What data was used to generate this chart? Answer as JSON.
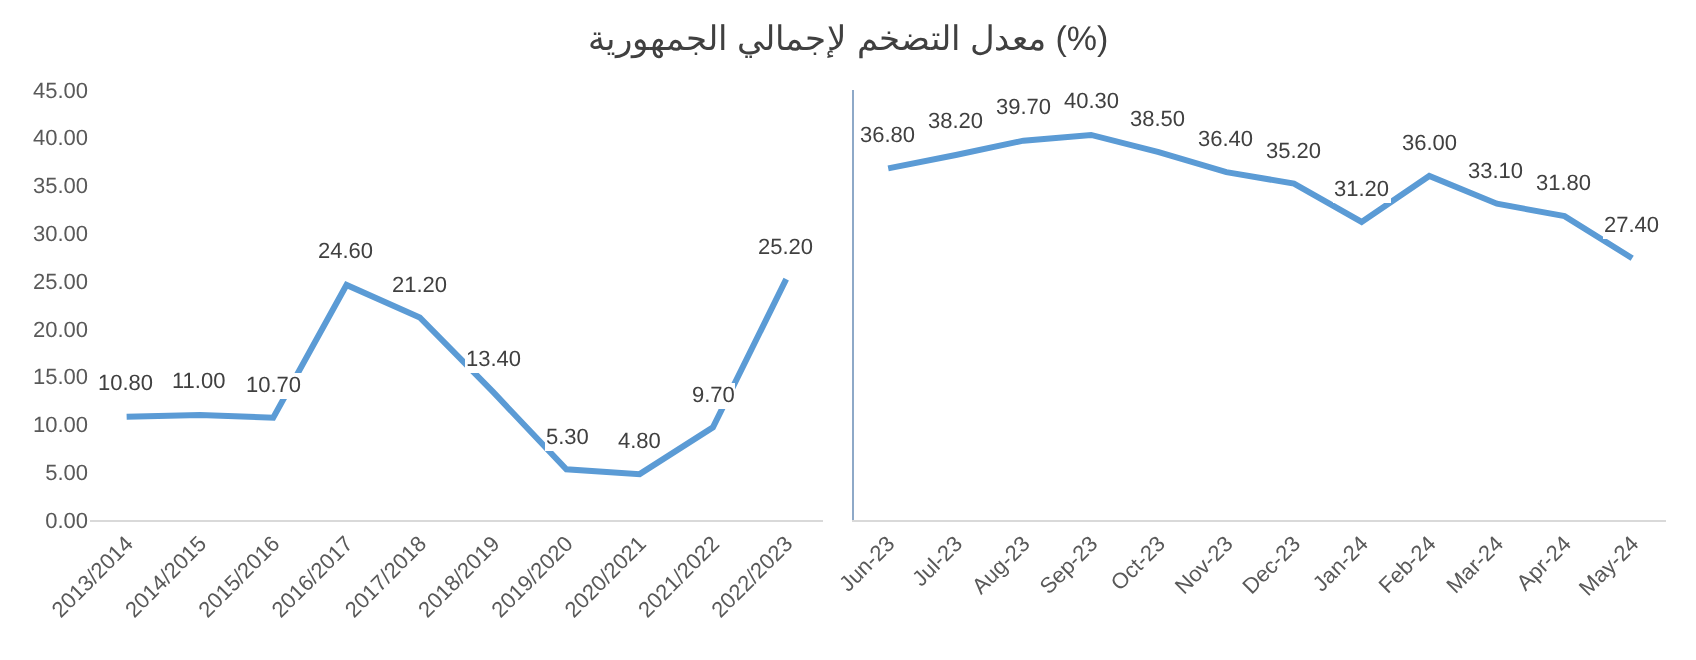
{
  "chart_data": [
    {
      "type": "line",
      "title": "معدل التضخم لإجمالي الجمهورية (%)",
      "categories": [
        "2013/2014",
        "2014/2015",
        "2015/2016",
        "2016/2017",
        "2017/2018",
        "2018/2019",
        "2019/2020",
        "2020/2021",
        "2021/2022",
        "2022/2023"
      ],
      "series": [
        {
          "color": "#5b9bd5",
          "values": [
            10.8,
            11.0,
            10.7,
            24.6,
            21.2,
            13.4,
            5.3,
            4.8,
            9.7,
            25.2
          ],
          "value_labels": [
            "10.80",
            "11.00",
            "10.70",
            "24.60",
            "21.20",
            "13.40",
            "5.30",
            "4.80",
            "9.70",
            "25.20"
          ]
        }
      ],
      "ylim": [
        0,
        45
      ],
      "yticks": [
        {
          "value": 0,
          "label": "0.00"
        },
        {
          "value": 5,
          "label": "5.00"
        },
        {
          "value": 10,
          "label": "10.00"
        },
        {
          "value": 15,
          "label": "15.00"
        },
        {
          "value": 20,
          "label": "20.00"
        },
        {
          "value": 25,
          "label": "25.00"
        },
        {
          "value": 30,
          "label": "30.00"
        },
        {
          "value": 35,
          "label": "35.00"
        },
        {
          "value": 40,
          "label": "40.00"
        },
        {
          "value": 45,
          "label": "45.00"
        }
      ],
      "marker": "none",
      "line_style": "solid"
    },
    {
      "type": "line",
      "categories": [
        "Jun-23",
        "Jul-23",
        "Aug-23",
        "Sep-23",
        "Oct-23",
        "Nov-23",
        "Dec-23",
        "Jan-24",
        "Feb-24",
        "Mar-24",
        "Apr-24",
        "May-24"
      ],
      "series": [
        {
          "color": "#5b9bd5",
          "values": [
            36.8,
            38.2,
            39.7,
            40.3,
            38.5,
            36.4,
            35.2,
            31.2,
            36.0,
            33.1,
            31.8,
            27.4
          ],
          "value_labels": [
            "36.80",
            "38.20",
            "39.70",
            "40.30",
            "38.50",
            "36.40",
            "35.20",
            "31.20",
            "36.00",
            "33.10",
            "31.80",
            "27.40"
          ]
        }
      ],
      "ylim": [
        0,
        45
      ],
      "tick_labels": "x",
      "marker": "none",
      "line_style": "solid"
    }
  ]
}
